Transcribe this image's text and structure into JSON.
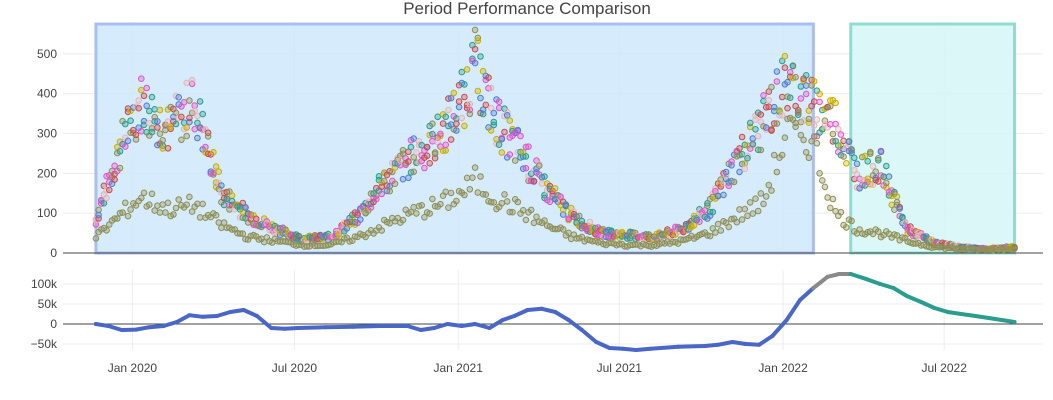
{
  "chart_data": [
    {
      "type": "scatter",
      "title": "Period Performance Comparison",
      "xlabel": "",
      "ylabel": "",
      "ylim": [
        0,
        580
      ],
      "yticks": [
        0,
        100,
        200,
        300,
        400,
        500
      ],
      "xlim": [
        "2019-10-15",
        "2022-10-20"
      ],
      "xticks": [
        "Jan 2020",
        "Jul 2020",
        "Jan 2021",
        "Jul 2021",
        "Jan 2022",
        "Jul 2022"
      ],
      "grid": true,
      "legend": "none",
      "shaded_periods": [
        {
          "start": "2019-11-21",
          "end": "2022-02-04",
          "fill": "#cfe8fb",
          "stroke": "#a9bff0"
        },
        {
          "start": "2022-03-18",
          "end": "2022-09-18",
          "fill": "#d6f6f6",
          "stroke": "#8fdcd3"
        }
      ],
      "series_colors": [
        "#2a9d8f",
        "#e056c8",
        "#8f8f55",
        "#e8b4b8",
        "#c9b000",
        "#4f7fd0",
        "#c94c4c"
      ],
      "series": [
        {
          "values_by_x": [
            [
              "2019-11-21",
              85
            ],
            [
              "2019-12-21",
              280
            ],
            [
              "2020-01-10",
              380
            ],
            [
              "2020-02-10",
              310
            ],
            [
              "2020-03-10",
              380
            ],
            [
              "2020-04-10",
              150
            ],
            [
              "2020-05-10",
              95
            ],
            [
              "2020-06-10",
              60
            ],
            [
              "2020-07-10",
              35
            ],
            [
              "2020-08-10",
              40
            ],
            [
              "2020-09-10",
              90
            ],
            [
              "2020-10-10",
              180
            ],
            [
              "2020-11-10",
              240
            ],
            [
              "2020-12-10",
              290
            ],
            [
              "2021-01-05",
              380
            ],
            [
              "2021-01-20",
              470
            ],
            [
              "2021-02-10",
              340
            ],
            [
              "2021-03-10",
              260
            ],
            [
              "2021-04-10",
              160
            ],
            [
              "2021-05-10",
              90
            ],
            [
              "2021-06-10",
              50
            ],
            [
              "2021-07-10",
              45
            ],
            [
              "2021-08-10",
              40
            ],
            [
              "2021-09-10",
              60
            ],
            [
              "2021-10-10",
              110
            ],
            [
              "2021-11-10",
              230
            ],
            [
              "2021-12-10",
              330
            ],
            [
              "2022-01-05",
              430
            ],
            [
              "2022-02-01",
              370
            ],
            [
              "2022-03-01",
              330
            ],
            [
              "2022-03-25",
              200
            ],
            [
              "2022-04-20",
              220
            ],
            [
              "2022-05-20",
              60
            ],
            [
              "2022-06-20",
              25
            ],
            [
              "2022-07-20",
              15
            ],
            [
              "2022-08-20",
              10
            ],
            [
              "2022-09-18",
              15
            ]
          ]
        },
        {
          "values_by_x": [
            [
              "2019-11-21",
              40
            ],
            [
              "2019-12-21",
              100
            ],
            [
              "2020-01-10",
              140
            ],
            [
              "2020-02-10",
              110
            ],
            [
              "2020-03-10",
              120
            ],
            [
              "2020-04-10",
              70
            ],
            [
              "2020-05-10",
              40
            ],
            [
              "2020-06-10",
              30
            ],
            [
              "2020-07-10",
              20
            ],
            [
              "2020-08-10",
              20
            ],
            [
              "2020-09-10",
              40
            ],
            [
              "2020-10-10",
              70
            ],
            [
              "2020-11-10",
              100
            ],
            [
              "2020-12-10",
              120
            ],
            [
              "2021-01-05",
              150
            ],
            [
              "2021-01-20",
              180
            ],
            [
              "2021-02-10",
              140
            ],
            [
              "2021-03-10",
              110
            ],
            [
              "2021-04-10",
              70
            ],
            [
              "2021-05-10",
              40
            ],
            [
              "2021-06-10",
              25
            ],
            [
              "2021-07-10",
              20
            ],
            [
              "2021-08-10",
              20
            ],
            [
              "2021-09-10",
              30
            ],
            [
              "2021-10-10",
              50
            ],
            [
              "2021-11-10",
              90
            ],
            [
              "2021-12-10",
              130
            ],
            [
              "2022-01-05",
              300
            ],
            [
              "2022-02-01",
              290
            ],
            [
              "2022-03-01",
              100
            ],
            [
              "2022-03-25",
              60
            ],
            [
              "2022-04-20",
              50
            ],
            [
              "2022-05-20",
              30
            ],
            [
              "2022-06-20",
              15
            ],
            [
              "2022-07-20",
              10
            ],
            [
              "2022-08-20",
              8
            ],
            [
              "2022-09-18",
              10
            ]
          ]
        }
      ]
    },
    {
      "type": "line",
      "title": "",
      "xlabel": "",
      "ylabel": "",
      "ylim": [
        -65000,
        135000
      ],
      "yticks": [
        -50000,
        0,
        50000,
        100000
      ],
      "ytick_labels": [
        "−50k",
        "0",
        "50k",
        "100k"
      ],
      "xlim": [
        "2019-10-15",
        "2022-10-20"
      ],
      "xticks": [
        "Jan 2020",
        "Jul 2020",
        "Jan 2021",
        "Jul 2021",
        "Jan 2022",
        "Jul 2022"
      ],
      "grid": true,
      "legend": "none",
      "series": [
        {
          "color": "#4a67c8",
          "segment": "period-1",
          "points": [
            [
              "2019-11-21",
              0
            ],
            [
              "2019-12-05",
              -5000
            ],
            [
              "2019-12-20",
              -15000
            ],
            [
              "2020-01-05",
              -14000
            ],
            [
              "2020-01-20",
              -8000
            ],
            [
              "2020-02-05",
              -5000
            ],
            [
              "2020-02-20",
              5000
            ],
            [
              "2020-03-05",
              22000
            ],
            [
              "2020-03-20",
              18000
            ],
            [
              "2020-04-05",
              20000
            ],
            [
              "2020-04-20",
              30000
            ],
            [
              "2020-05-05",
              35000
            ],
            [
              "2020-05-20",
              20000
            ],
            [
              "2020-06-05",
              -10000
            ],
            [
              "2020-06-20",
              -12000
            ],
            [
              "2020-07-05",
              -10000
            ],
            [
              "2020-08-05",
              -8000
            ],
            [
              "2020-09-05",
              -7000
            ],
            [
              "2020-10-05",
              -5000
            ],
            [
              "2020-11-05",
              -5000
            ],
            [
              "2020-11-20",
              -15000
            ],
            [
              "2020-12-05",
              -10000
            ],
            [
              "2020-12-20",
              0
            ],
            [
              "2021-01-05",
              -5000
            ],
            [
              "2021-01-20",
              0
            ],
            [
              "2021-02-05",
              -10000
            ],
            [
              "2021-02-20",
              10000
            ],
            [
              "2021-03-05",
              20000
            ],
            [
              "2021-03-20",
              35000
            ],
            [
              "2021-04-05",
              38000
            ],
            [
              "2021-04-20",
              30000
            ],
            [
              "2021-05-05",
              10000
            ],
            [
              "2021-05-20",
              -15000
            ],
            [
              "2021-06-05",
              -45000
            ],
            [
              "2021-06-20",
              -60000
            ],
            [
              "2021-07-05",
              -62000
            ],
            [
              "2021-07-20",
              -65000
            ],
            [
              "2021-08-05",
              -62000
            ],
            [
              "2021-09-05",
              -57000
            ],
            [
              "2021-10-05",
              -55000
            ],
            [
              "2021-10-20",
              -52000
            ],
            [
              "2021-11-05",
              -45000
            ],
            [
              "2021-11-20",
              -50000
            ],
            [
              "2021-12-05",
              -52000
            ],
            [
              "2021-12-20",
              -30000
            ],
            [
              "2022-01-05",
              10000
            ],
            [
              "2022-01-20",
              60000
            ],
            [
              "2022-02-04",
              90000
            ]
          ]
        },
        {
          "color": "#8a8a8a",
          "segment": "gap",
          "points": [
            [
              "2022-02-04",
              90000
            ],
            [
              "2022-02-20",
              118000
            ],
            [
              "2022-03-05",
              125000
            ],
            [
              "2022-03-18",
              125000
            ]
          ]
        },
        {
          "color": "#2a9d8f",
          "segment": "period-2",
          "points": [
            [
              "2022-03-18",
              125000
            ],
            [
              "2022-04-05",
              112000
            ],
            [
              "2022-04-20",
              100000
            ],
            [
              "2022-05-05",
              90000
            ],
            [
              "2022-05-20",
              70000
            ],
            [
              "2022-06-05",
              55000
            ],
            [
              "2022-06-20",
              40000
            ],
            [
              "2022-07-05",
              30000
            ],
            [
              "2022-07-20",
              25000
            ],
            [
              "2022-08-05",
              20000
            ],
            [
              "2022-08-20",
              15000
            ],
            [
              "2022-09-18",
              5000
            ]
          ]
        }
      ]
    }
  ]
}
